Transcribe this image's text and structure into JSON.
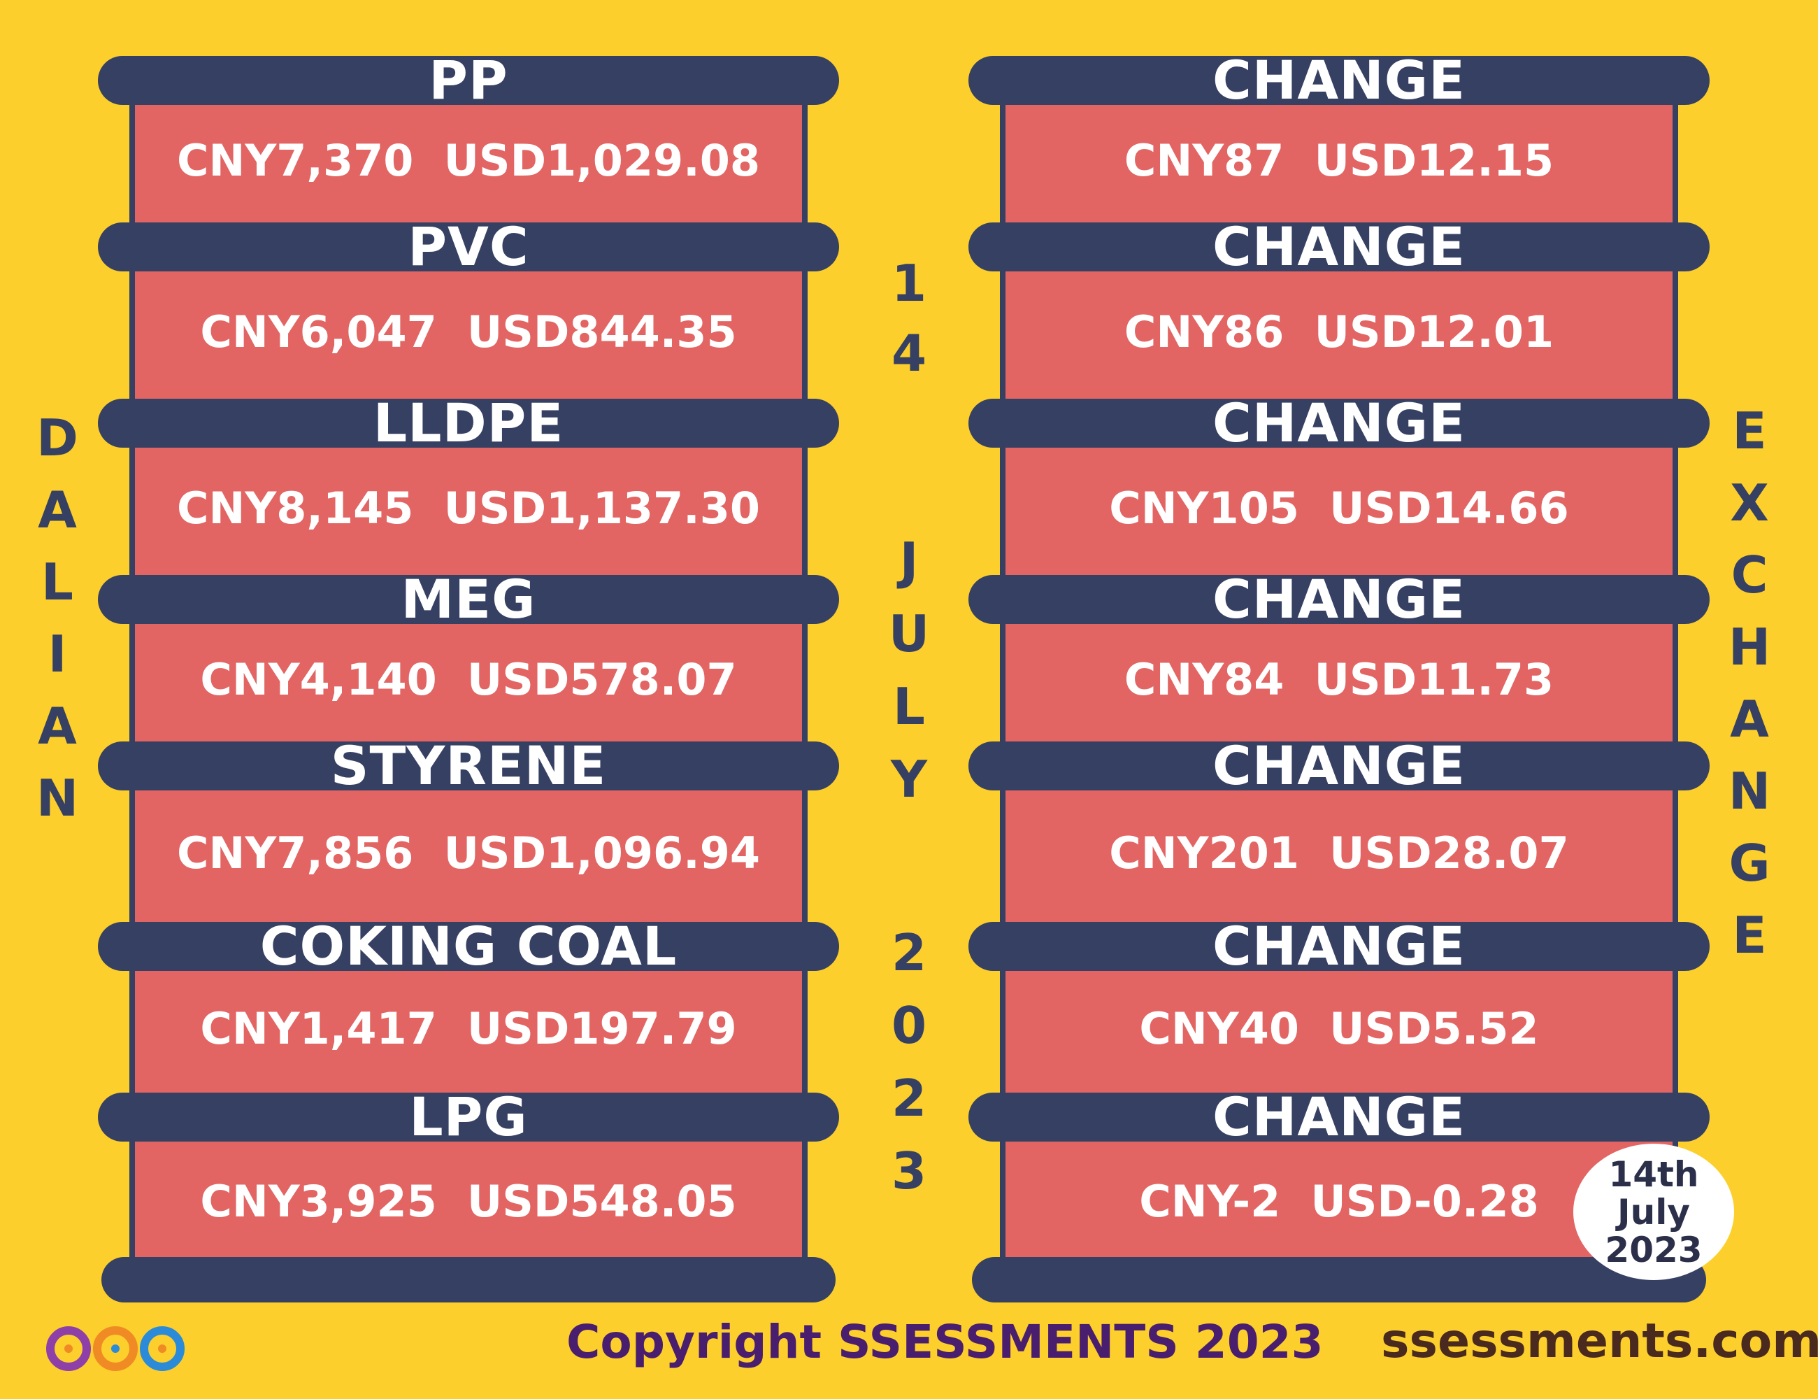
{
  "left_items": [
    {
      "name": "PP",
      "value": "CNY7,370  USD1,029.08"
    },
    {
      "name": "PVC",
      "value": "CNY6,047  USD844.35"
    },
    {
      "name": "LLDPE",
      "value": "CNY8,145  USD1,137.30"
    },
    {
      "name": "MEG",
      "value": "CNY4,140  USD578.07"
    },
    {
      "name": "STYRENE",
      "value": "CNY7,856  USD1,096.94"
    },
    {
      "name": "COKING COAL",
      "value": "CNY1,417  USD197.79"
    },
    {
      "name": "LPG",
      "value": "CNY3,925  USD548.05"
    }
  ],
  "right_items": [
    {
      "name": "CHANGE",
      "value": "CNY87  USD12.15"
    },
    {
      "name": "CHANGE",
      "value": "CNY86  USD12.01"
    },
    {
      "name": "CHANGE",
      "value": "CNY105  USD14.66"
    },
    {
      "name": "CHANGE",
      "value": "CNY84  USD11.73"
    },
    {
      "name": "CHANGE",
      "value": "CNY201  USD28.07"
    },
    {
      "name": "CHANGE",
      "value": "CNY40  USD5.52"
    },
    {
      "name": "CHANGE",
      "value": "CNY-2  USD-0.28"
    }
  ],
  "vertical": {
    "left": [
      "D",
      "A",
      "L",
      "I",
      "A",
      "N"
    ],
    "center_day": [
      "1",
      "4"
    ],
    "center_month": [
      "J",
      "U",
      "L",
      "Y"
    ],
    "center_year": [
      "2",
      "0",
      "2",
      "3"
    ],
    "right": [
      "E",
      "X",
      "C",
      "H",
      "A",
      "N",
      "G",
      "E"
    ]
  },
  "badge": {
    "line1": "14th",
    "line2": "July",
    "line3": "2023"
  },
  "footer": {
    "copyright": "Copyright SSESSMENTS 2023",
    "site": "ssessments.com"
  },
  "colors": {
    "background": "#FCCF2C",
    "band": "#364062",
    "panel": "#E26563",
    "logo_purple": "#8E3FA8",
    "logo_blue": "#2C8BD8",
    "logo_orange": "#F08A24"
  }
}
